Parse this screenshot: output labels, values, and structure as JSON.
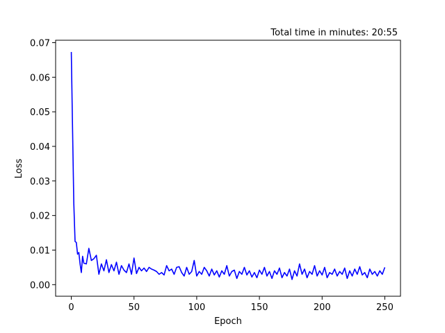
{
  "chart_data": {
    "type": "line",
    "title": "Total time in minutes: 20:55",
    "xlabel": "Epoch",
    "ylabel": "Loss",
    "xlim": [
      -12.5,
      262.5
    ],
    "ylim": [
      -0.00335,
      0.0707
    ],
    "xticks": [
      0,
      50,
      100,
      150,
      200,
      250
    ],
    "xtick_labels": [
      "0",
      "50",
      "100",
      "150",
      "200",
      "250"
    ],
    "yticks": [
      0.0,
      0.01,
      0.02,
      0.03,
      0.04,
      0.05,
      0.06,
      0.07
    ],
    "ytick_labels": [
      "0.00",
      "0.01",
      "0.02",
      "0.03",
      "0.04",
      "0.05",
      "0.06",
      "0.07"
    ],
    "grid": false,
    "legend": "none",
    "series": [
      {
        "color": "#0000ff",
        "x": [
          0,
          1,
          2,
          3,
          4,
          5,
          6,
          7,
          8,
          9,
          10,
          12,
          14,
          16,
          18,
          20,
          22,
          24,
          26,
          28,
          30,
          32,
          34,
          36,
          38,
          40,
          42,
          44,
          46,
          48,
          50,
          52,
          54,
          56,
          58,
          60,
          62,
          64,
          66,
          68,
          70,
          72,
          74,
          76,
          78,
          80,
          82,
          84,
          86,
          88,
          90,
          92,
          94,
          96,
          98,
          100,
          102,
          104,
          106,
          108,
          110,
          112,
          114,
          116,
          118,
          120,
          122,
          124,
          126,
          128,
          130,
          132,
          134,
          136,
          138,
          140,
          142,
          144,
          146,
          148,
          150,
          152,
          154,
          156,
          158,
          160,
          162,
          164,
          166,
          168,
          170,
          172,
          174,
          176,
          178,
          180,
          182,
          184,
          186,
          188,
          190,
          192,
          194,
          196,
          198,
          200,
          202,
          204,
          206,
          208,
          210,
          212,
          214,
          216,
          218,
          220,
          222,
          224,
          226,
          228,
          230,
          232,
          234,
          236,
          238,
          240,
          242,
          244,
          246,
          248,
          250
        ],
        "y": [
          0.0673,
          0.045,
          0.0235,
          0.0125,
          0.0122,
          0.0088,
          0.0093,
          0.006,
          0.0035,
          0.0082,
          0.0062,
          0.006,
          0.0105,
          0.007,
          0.0075,
          0.0085,
          0.003,
          0.006,
          0.004,
          0.0072,
          0.0035,
          0.0058,
          0.004,
          0.0065,
          0.003,
          0.0055,
          0.0042,
          0.0035,
          0.006,
          0.003,
          0.0077,
          0.0032,
          0.005,
          0.004,
          0.0048,
          0.0038,
          0.005,
          0.0045,
          0.0042,
          0.0038,
          0.003,
          0.0035,
          0.0028,
          0.0055,
          0.004,
          0.0045,
          0.003,
          0.005,
          0.0052,
          0.0035,
          0.0025,
          0.005,
          0.003,
          0.0038,
          0.007,
          0.0025,
          0.0038,
          0.003,
          0.005,
          0.004,
          0.0025,
          0.0045,
          0.0028,
          0.004,
          0.0022,
          0.004,
          0.003,
          0.0055,
          0.0025,
          0.0038,
          0.0042,
          0.0018,
          0.0038,
          0.003,
          0.005,
          0.0028,
          0.004,
          0.0022,
          0.0035,
          0.002,
          0.0042,
          0.003,
          0.005,
          0.0025,
          0.0038,
          0.0018,
          0.004,
          0.003,
          0.0048,
          0.002,
          0.0035,
          0.0025,
          0.0045,
          0.0015,
          0.004,
          0.0025,
          0.006,
          0.003,
          0.0045,
          0.002,
          0.0038,
          0.003,
          0.0055,
          0.0025,
          0.004,
          0.0028,
          0.005,
          0.002,
          0.0035,
          0.003,
          0.0045,
          0.0025,
          0.0038,
          0.003,
          0.0048,
          0.0018,
          0.004,
          0.0025,
          0.0045,
          0.003,
          0.0052,
          0.0028,
          0.0035,
          0.002,
          0.0045,
          0.003,
          0.0038,
          0.0025,
          0.004,
          0.003,
          0.005
        ]
      }
    ]
  }
}
